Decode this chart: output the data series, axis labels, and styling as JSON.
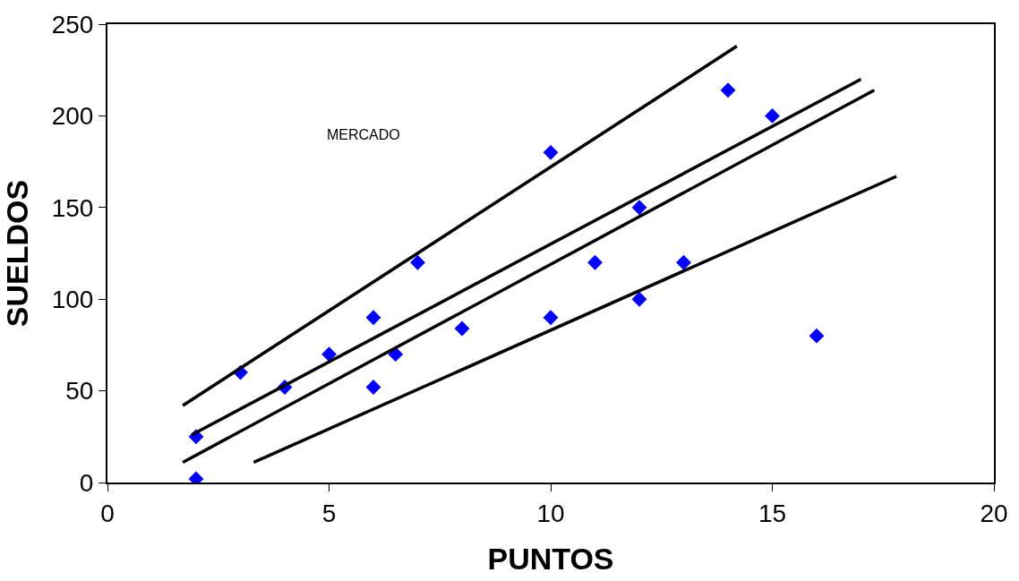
{
  "chart_data": {
    "type": "scatter",
    "xlabel": "PUNTOS",
    "ylabel": "SUELDOS",
    "annotations": [
      "MERCADO"
    ],
    "xlim": [
      0,
      20
    ],
    "xticks": [
      0,
      5,
      10,
      15,
      20
    ],
    "ylim": [
      0,
      250
    ],
    "yticks": [
      0,
      50,
      100,
      150,
      200,
      250
    ],
    "series": [
      {
        "marker": "diamond",
        "color": "#0000ff",
        "x": [
          2,
          2,
          3,
          4,
          5,
          6,
          6,
          6.5,
          7,
          8,
          10,
          10,
          11,
          12,
          12,
          13,
          14,
          15,
          16
        ],
        "values": [
          25,
          2,
          60,
          52,
          70,
          90,
          52,
          70,
          120,
          84,
          180,
          90,
          120,
          150,
          100,
          120,
          214,
          200,
          80
        ]
      },
      {
        "type": "line",
        "color": "#000000",
        "x": [
          1.7,
          14.2
        ],
        "values": [
          42,
          238
        ]
      },
      {
        "type": "line",
        "color": "#000000",
        "x": [
          1.9,
          17
        ],
        "values": [
          26,
          220
        ]
      },
      {
        "type": "line",
        "color": "#000000",
        "x": [
          1.7,
          17.3
        ],
        "values": [
          11,
          214
        ]
      },
      {
        "type": "line",
        "color": "#000000",
        "x": [
          3.3,
          17.8
        ],
        "values": [
          11,
          167
        ]
      }
    ]
  }
}
